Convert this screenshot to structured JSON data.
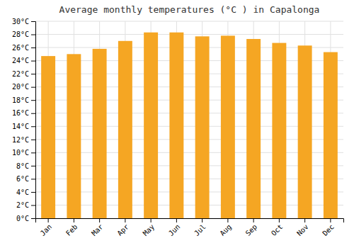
{
  "chart_data": {
    "type": "bar",
    "title": "Average monthly temperatures (°C ) in Capalonga",
    "categories": [
      "Jan",
      "Feb",
      "Mar",
      "Apr",
      "May",
      "Jun",
      "Jul",
      "Aug",
      "Sep",
      "Oct",
      "Nov",
      "Dec"
    ],
    "values": [
      24.7,
      25.0,
      25.8,
      27.0,
      28.3,
      28.3,
      27.7,
      27.8,
      27.3,
      26.7,
      26.3,
      25.3
    ],
    "color": "#F5A623",
    "ylim": [
      0,
      30
    ],
    "yticks": [
      {
        "value": 0,
        "label": "0°C"
      },
      {
        "value": 2,
        "label": "2°C"
      },
      {
        "value": 4,
        "label": "4°C"
      },
      {
        "value": 6,
        "label": "6°C"
      },
      {
        "value": 8,
        "label": "8°C"
      },
      {
        "value": 10,
        "label": "10°C"
      },
      {
        "value": 12,
        "label": "12°C"
      },
      {
        "value": 14,
        "label": "14°C"
      },
      {
        "value": 16,
        "label": "16°C"
      },
      {
        "value": 18,
        "label": "18°C"
      },
      {
        "value": 20,
        "label": "20°C"
      },
      {
        "value": 22,
        "label": "22°C"
      },
      {
        "value": 24,
        "label": "24°C"
      },
      {
        "value": 26,
        "label": "26°C"
      },
      {
        "value": 28,
        "label": "28°C"
      },
      {
        "value": 30,
        "label": "30°C"
      }
    ],
    "grid": true
  }
}
